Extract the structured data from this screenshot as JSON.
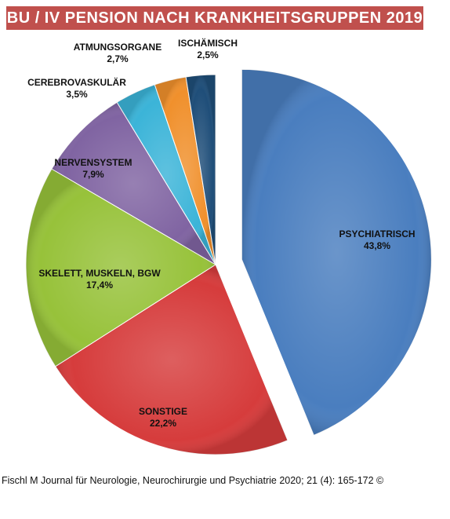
{
  "title": "BU / IV PENSION NACH KRANKHEITSGRUPPEN 2019",
  "caption": "Fischl M Journal für Neurologie, Neurochirurgie und Psychiatrie 2020; 21 (4): 165-172 ©",
  "colors": {
    "banner": "#c0504d",
    "slices": [
      "#4a7ebf",
      "#d63c3c",
      "#97c23a",
      "#8064a2",
      "#3bb4d8",
      "#f0902c",
      "#1f4e79"
    ]
  },
  "chart_data": {
    "type": "pie",
    "title": "BU / IV PENSION NACH KRANKHEITSGRUPPEN 2019",
    "start": "12 o'clock, clockwise",
    "exploded": "PSYCHIATRISCH",
    "slices": [
      {
        "label": "PSYCHIATRISCH",
        "value": 43.8,
        "value_label": "43,8%"
      },
      {
        "label": "SONSTIGE",
        "value": 22.2,
        "value_label": "22,2%"
      },
      {
        "label": "SKELETT, MUSKELN,  BGW",
        "value": 17.4,
        "value_label": "17,4%"
      },
      {
        "label": "NERVENSYSTEM",
        "value": 7.9,
        "value_label": "7,9%"
      },
      {
        "label": "CEREBROVASKULÄR",
        "value": 3.5,
        "value_label": "3,5%"
      },
      {
        "label": "ATMUNGSORGANE",
        "value": 2.7,
        "value_label": "2,7%"
      },
      {
        "label": "ISCHÄMISCH",
        "value": 2.5,
        "value_label": "2,5%"
      }
    ]
  }
}
